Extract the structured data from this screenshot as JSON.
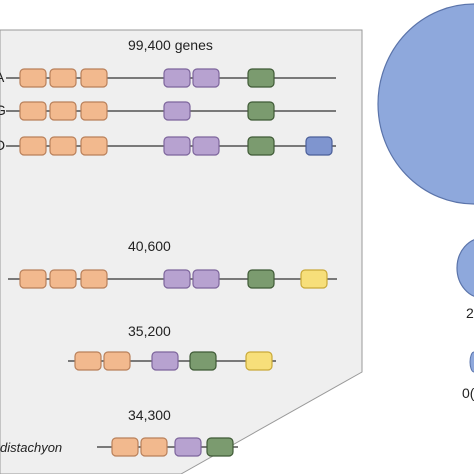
{
  "colors": {
    "panel_fill": "#efefef",
    "panel_stroke": "#999999",
    "line": "#333333",
    "orange": "#f2b98e",
    "purple": "#b7a2d0",
    "green": "#7b9b6f",
    "blue": "#7f95cf",
    "yellow": "#f7df7a",
    "bubble": "#8ea8dc"
  },
  "gene_counts": {
    "top": "99,400 genes",
    "second": "40,600",
    "third": "35,200",
    "fourth": "34,300"
  },
  "row_labels": {
    "a": "A",
    "g": "G",
    "d": "D"
  },
  "species_label": "distachyon",
  "right_edge_labels": {
    "bubble_two": "2",
    "bubble_three": "0("
  },
  "rows": [
    {
      "id": "subgenome-a",
      "blocks": [
        "orange",
        "orange",
        "orange",
        "purple",
        "purple",
        "green"
      ]
    },
    {
      "id": "subgenome-g",
      "blocks": [
        "orange",
        "orange",
        "orange",
        "purple",
        "green"
      ]
    },
    {
      "id": "subgenome-d",
      "blocks": [
        "orange",
        "orange",
        "orange",
        "purple",
        "purple",
        "green",
        "blue"
      ]
    },
    {
      "id": "row-40600",
      "blocks": [
        "orange",
        "orange",
        "orange",
        "purple",
        "purple",
        "green",
        "yellow"
      ]
    },
    {
      "id": "row-35200",
      "blocks": [
        "orange",
        "orange",
        "purple",
        "green",
        "yellow"
      ]
    },
    {
      "id": "row-34300",
      "blocks": [
        "orange",
        "orange",
        "purple",
        "green"
      ]
    }
  ]
}
